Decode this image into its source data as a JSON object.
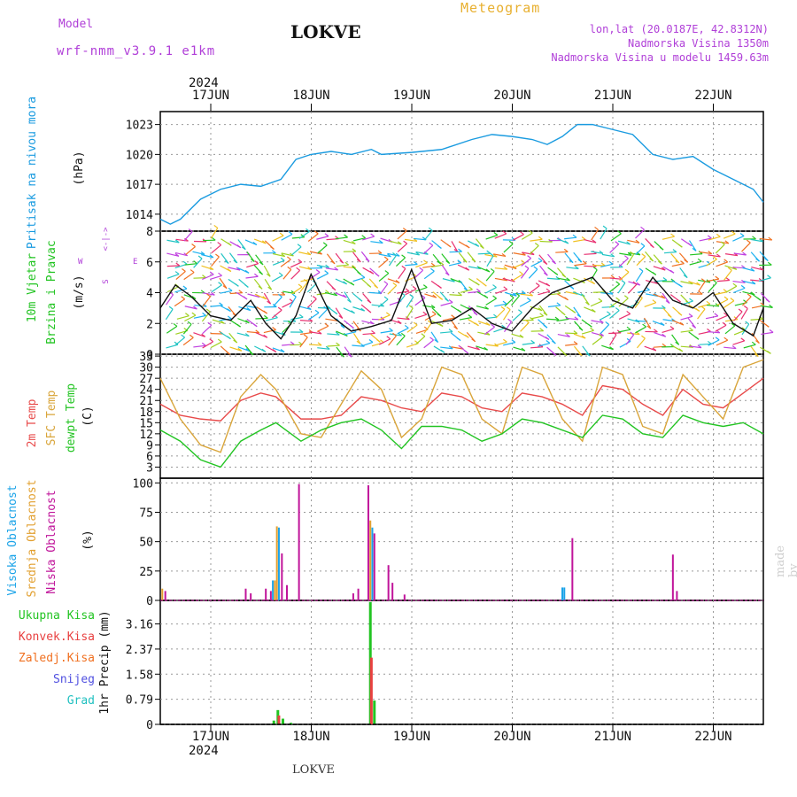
{
  "header": {
    "model_label": "Model",
    "model_name": "wrf-nmm_v3.9.1 e1km",
    "location": "LOKVE",
    "product": "Meteogram",
    "coords": "lon,lat (20.0187E, 42.8312N)",
    "elevation": "Nadmorska Visina 1350m",
    "model_elevation": "Nadmorska Visina u modelu 1459.63m",
    "credit": "made by Angel",
    "footer_location": "LOKVE"
  },
  "colors": {
    "purple": "#b03fd8",
    "title_orange": "#e8b030",
    "pressure": "#1a9be0",
    "temp2m": "#e84a4a",
    "sfc": "#d9a53a",
    "dewpt": "#22c422",
    "cl_high": "#1aa3e8",
    "cl_mid": "#e2a030",
    "cl_low": "#c0149a",
    "precip_total": "#22c422",
    "precip_conv": "#e84040",
    "precip_frz": "#f07020",
    "snow": "#5050e0",
    "grad": "#20c0c0"
  },
  "time_axis": {
    "top_year": "2024",
    "bottom_year": "2024",
    "days": [
      "17JUN",
      "18JUN",
      "19JUN",
      "20JUN",
      "21JUN",
      "22JUN"
    ]
  },
  "chart_data": [
    {
      "type": "line",
      "name": "pressure",
      "ylabel_lines": [
        "Pritisak na nivou mora"
      ],
      "unit": "(hPa)",
      "yticks": [
        1014,
        1017,
        1020,
        1023
      ],
      "ylim": [
        1012.3,
        1024.3
      ],
      "series": [
        {
          "x": [
            0,
            0.1,
            0.2,
            0.4,
            0.6,
            0.8,
            1.0,
            1.2,
            1.35,
            1.5,
            1.7,
            1.9,
            2.1,
            2.2,
            2.5,
            2.8,
            3.1,
            3.3,
            3.5,
            3.7,
            3.85,
            4.0,
            4.15,
            4.3,
            4.5,
            4.7,
            4.9,
            5.1,
            5.3,
            5.5,
            5.7,
            5.9,
            6.0
          ],
          "y": [
            1013.5,
            1013.0,
            1013.5,
            1015.5,
            1016.5,
            1017.0,
            1016.8,
            1017.5,
            1019.5,
            1020.0,
            1020.3,
            1020.0,
            1020.5,
            1020.0,
            1020.2,
            1020.5,
            1021.5,
            1022.0,
            1021.8,
            1021.5,
            1021.0,
            1021.8,
            1023.0,
            1023.0,
            1022.5,
            1022.0,
            1020.0,
            1019.5,
            1019.8,
            1018.5,
            1017.5,
            1016.5,
            1015.2
          ]
        }
      ]
    },
    {
      "type": "line",
      "name": "wind",
      "ylabel_lines": [
        "10m Vjetar",
        "Brzina i Pravac"
      ],
      "unit": "(m/s)",
      "compass": {
        "w": "W",
        "e": "E",
        "n": "<-|->",
        "s": "S"
      },
      "yticks": [
        0,
        2,
        4,
        6,
        8
      ],
      "ylim": [
        0,
        8
      ],
      "series": [
        {
          "name": "speed",
          "x": [
            0,
            0.15,
            0.3,
            0.5,
            0.7,
            0.9,
            1.05,
            1.2,
            1.35,
            1.5,
            1.7,
            1.9,
            2.1,
            2.3,
            2.5,
            2.7,
            2.9,
            3.1,
            3.3,
            3.5,
            3.7,
            3.9,
            4.1,
            4.3,
            4.5,
            4.7,
            4.9,
            5.1,
            5.3,
            5.5,
            5.7,
            5.9,
            6.0
          ],
          "y": [
            3.0,
            4.5,
            3.8,
            2.5,
            2.2,
            3.5,
            2.0,
            1.0,
            2.5,
            5.2,
            2.5,
            1.5,
            1.8,
            2.2,
            5.5,
            2.0,
            2.2,
            3.0,
            2.0,
            1.5,
            3.0,
            4.0,
            4.5,
            5.0,
            3.5,
            3.0,
            5.0,
            3.5,
            3.0,
            4.0,
            2.0,
            1.2,
            3.0
          ]
        }
      ]
    },
    {
      "type": "line",
      "name": "temperature",
      "ylabel_lines": [
        "2m Temp",
        "SFC Temp",
        "dewpt Temp"
      ],
      "unit": "(C)",
      "yticks": [
        3,
        6,
        9,
        12,
        15,
        18,
        21,
        24,
        27,
        30,
        33
      ],
      "ylim": [
        0,
        33.5
      ],
      "series": [
        {
          "name": "2m Temp",
          "x": [
            0,
            0.2,
            0.4,
            0.6,
            0.8,
            1.0,
            1.15,
            1.4,
            1.6,
            1.8,
            2.0,
            2.2,
            2.4,
            2.6,
            2.8,
            3.0,
            3.2,
            3.4,
            3.6,
            3.8,
            4.0,
            4.2,
            4.4,
            4.6,
            4.8,
            5.0,
            5.2,
            5.4,
            5.6,
            5.8,
            6.0
          ],
          "y": [
            20,
            17,
            16,
            15.5,
            21,
            23,
            22,
            16,
            16,
            17,
            22,
            21,
            19,
            18,
            23,
            22,
            19,
            18,
            23,
            22,
            20,
            17,
            25,
            24,
            20,
            17,
            24,
            20,
            19,
            23,
            27
          ]
        },
        {
          "name": "SFC Temp",
          "x": [
            0,
            0.2,
            0.4,
            0.6,
            0.8,
            1.0,
            1.15,
            1.4,
            1.6,
            1.8,
            2.0,
            2.2,
            2.4,
            2.6,
            2.8,
            3.0,
            3.2,
            3.4,
            3.6,
            3.8,
            4.0,
            4.2,
            4.4,
            4.6,
            4.8,
            5.0,
            5.2,
            5.4,
            5.6,
            5.8,
            6.0
          ],
          "y": [
            27,
            16,
            9,
            7,
            22,
            28,
            24,
            12,
            11,
            20,
            29,
            24,
            11,
            16,
            30,
            28,
            16,
            12,
            30,
            28,
            16,
            10,
            30,
            28,
            14,
            12,
            28,
            22,
            16,
            30,
            32
          ]
        },
        {
          "name": "dewpt Temp",
          "x": [
            0,
            0.2,
            0.4,
            0.6,
            0.8,
            1.0,
            1.15,
            1.4,
            1.6,
            1.8,
            2.0,
            2.2,
            2.4,
            2.6,
            2.8,
            3.0,
            3.2,
            3.4,
            3.6,
            3.8,
            4.0,
            4.2,
            4.4,
            4.6,
            4.8,
            5.0,
            5.2,
            5.4,
            5.6,
            5.8,
            6.0
          ],
          "y": [
            13,
            10,
            5,
            3,
            10,
            13,
            15,
            10,
            13,
            15,
            16,
            13,
            8,
            14,
            14,
            13,
            10,
            12,
            16,
            15,
            13,
            11,
            17,
            16,
            12,
            11,
            17,
            15,
            14,
            15,
            12
          ]
        }
      ]
    },
    {
      "type": "bar",
      "name": "clouds",
      "ylabel_lines": [
        "Visoka Oblacnost",
        "Srednja Oblacnost",
        "Niska Oblacnost"
      ],
      "unit": "(%)",
      "yticks": [
        0,
        25,
        50,
        75,
        100
      ],
      "ylim": [
        0,
        104
      ],
      "bars": [
        {
          "x": 0.02,
          "v": 10,
          "c": "mid"
        },
        {
          "x": 0.05,
          "v": 8,
          "c": "low"
        },
        {
          "x": 0.85,
          "v": 10,
          "c": "low"
        },
        {
          "x": 0.9,
          "v": 6,
          "c": "low"
        },
        {
          "x": 1.05,
          "v": 10,
          "c": "low"
        },
        {
          "x": 1.1,
          "v": 8,
          "c": "low"
        },
        {
          "x": 1.12,
          "v": 17,
          "c": "high"
        },
        {
          "x": 1.14,
          "v": 17,
          "c": "mid"
        },
        {
          "x": 1.16,
          "v": 63,
          "c": "mid"
        },
        {
          "x": 1.18,
          "v": 62,
          "c": "high"
        },
        {
          "x": 1.21,
          "v": 40,
          "c": "low"
        },
        {
          "x": 1.26,
          "v": 13,
          "c": "low"
        },
        {
          "x": 1.38,
          "v": 99,
          "c": "low"
        },
        {
          "x": 1.92,
          "v": 6,
          "c": "low"
        },
        {
          "x": 1.97,
          "v": 10,
          "c": "low"
        },
        {
          "x": 2.07,
          "v": 98,
          "c": "low"
        },
        {
          "x": 2.09,
          "v": 68,
          "c": "mid"
        },
        {
          "x": 2.11,
          "v": 62,
          "c": "high"
        },
        {
          "x": 2.13,
          "v": 57,
          "c": "low"
        },
        {
          "x": 2.27,
          "v": 30,
          "c": "low"
        },
        {
          "x": 2.31,
          "v": 15,
          "c": "low"
        },
        {
          "x": 2.43,
          "v": 5,
          "c": "low"
        },
        {
          "x": 4.0,
          "v": 11,
          "c": "high"
        },
        {
          "x": 4.02,
          "v": 11,
          "c": "high"
        },
        {
          "x": 4.1,
          "v": 53,
          "c": "low"
        },
        {
          "x": 5.1,
          "v": 39,
          "c": "low"
        },
        {
          "x": 5.14,
          "v": 8,
          "c": "low"
        }
      ]
    },
    {
      "type": "bar",
      "name": "precipitation",
      "ylabel": "1hr Precip (mm)",
      "legend": [
        "Ukupna Kisa",
        "Konvek.Kisa",
        "Zaledj.Kisa",
        "Snijeg",
        "Grad"
      ],
      "yticks": [
        0,
        0.79,
        1.58,
        2.37,
        3.16
      ],
      "ylim": [
        0,
        3.9
      ],
      "bars": [
        {
          "x": 1.13,
          "v": 0.12,
          "c": "total"
        },
        {
          "x": 1.17,
          "v": 0.45,
          "c": "total"
        },
        {
          "x": 1.18,
          "v": 0.28,
          "c": "conv"
        },
        {
          "x": 1.22,
          "v": 0.18,
          "c": "total"
        },
        {
          "x": 1.3,
          "v": 0.05,
          "c": "total"
        },
        {
          "x": 2.09,
          "v": 3.85,
          "c": "total"
        },
        {
          "x": 2.1,
          "v": 2.1,
          "c": "conv"
        },
        {
          "x": 2.13,
          "v": 0.75,
          "c": "total"
        }
      ]
    }
  ]
}
